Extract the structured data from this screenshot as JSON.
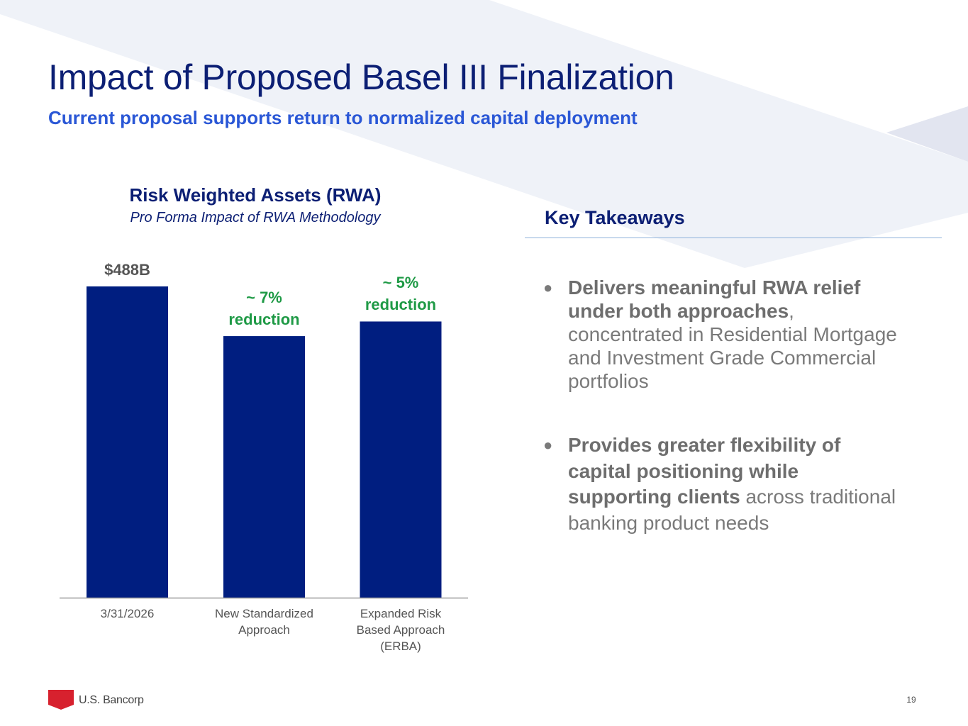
{
  "header": {
    "title": "Impact of Proposed Basel III Finalization",
    "subtitle": "Current proposal supports return to normalized capital deployment"
  },
  "chart_data": {
    "type": "bar",
    "title": "Risk Weighted Assets (RWA)",
    "subtitle": "Pro Forma Impact of RWA Methodology",
    "categories": [
      [
        "3/31/2026"
      ],
      [
        "New Standardized",
        "Approach"
      ],
      [
        "Expanded Risk",
        "Based Approach",
        "(ERBA)"
      ]
    ],
    "values": [
      488,
      454,
      464
    ],
    "unit": "$B",
    "data_labels": [
      [
        "$488B"
      ],
      [
        "~ 7%",
        "reduction"
      ],
      [
        "~ 5%",
        "reduction"
      ]
    ],
    "data_label_colors": [
      "#555555",
      "#1f9a46",
      "#1f9a46"
    ],
    "bar_color": "#001e80",
    "axis_color": "#9a9a9a",
    "xlabel": "",
    "ylabel": "",
    "ylim": [
      275,
      488
    ],
    "grid": false,
    "legend": "none"
  },
  "takeaways": {
    "title": "Key Takeaways",
    "bullets": [
      {
        "bold": "Delivers meaningful RWA relief under both approaches",
        "rest": ", concentrated in Residential Mortgage and Investment Grade Commercial portfolios"
      },
      {
        "bold": "Provides greater flexibility of capital positioning while supporting clients",
        "rest": " across traditional banking product needs"
      }
    ]
  },
  "footer": {
    "logo_text": "U.S. Bancorp",
    "page_number": "19"
  },
  "colors": {
    "title": "#0c1f74",
    "subtitle": "#2a57d6",
    "accent_green": "#1f9a46",
    "logo_red": "#d7212e",
    "background_shape": "#eff2f8"
  }
}
